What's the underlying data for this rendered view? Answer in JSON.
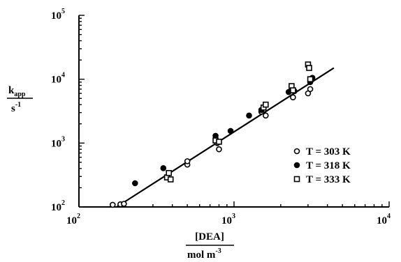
{
  "chart_data": {
    "type": "scatter",
    "xscale": "log",
    "yscale": "log",
    "xlim": [
      100,
      10000
    ],
    "ylim": [
      100,
      100000
    ],
    "grid": false,
    "legend_position": "right",
    "xlabel": {
      "numerator": "[DEA]",
      "denominator_base": "mol m",
      "denominator_exp": "-3"
    },
    "ylabel": {
      "numerator_base": "k",
      "numerator_sub": "app",
      "denominator_base": "s",
      "denominator_exp": "-1"
    },
    "x_ticks": [
      {
        "value": 100,
        "base": "10",
        "exp": "2"
      },
      {
        "value": 1000,
        "base": "10",
        "exp": "3"
      },
      {
        "value": 10000,
        "base": "10",
        "exp": "4"
      }
    ],
    "y_ticks": [
      {
        "value": 100,
        "base": "10",
        "exp": "2"
      },
      {
        "value": 1000,
        "base": "10",
        "exp": "3"
      },
      {
        "value": 10000,
        "base": "10",
        "exp": "4"
      },
      {
        "value": 100000,
        "base": "10",
        "exp": "5"
      }
    ],
    "series": [
      {
        "name": "T = 303 K",
        "marker": "open-circle",
        "points": [
          [
            165,
            108
          ],
          [
            185,
            110
          ],
          [
            195,
            112
          ],
          [
            500,
            460
          ],
          [
            500,
            520
          ],
          [
            780,
            1000
          ],
          [
            800,
            800
          ],
          [
            1500,
            3100
          ],
          [
            1600,
            2700
          ],
          [
            2400,
            5200
          ],
          [
            3000,
            6000
          ],
          [
            3100,
            7000
          ]
        ]
      },
      {
        "name": "T = 318 K",
        "marker": "filled-circle",
        "points": [
          [
            230,
            235
          ],
          [
            350,
            405
          ],
          [
            760,
            1300
          ],
          [
            950,
            1550
          ],
          [
            1250,
            2700
          ],
          [
            1500,
            3300
          ],
          [
            2250,
            6300
          ],
          [
            2450,
            6500
          ],
          [
            3100,
            9000
          ],
          [
            3200,
            10500
          ]
        ]
      },
      {
        "name": "T = 333 K",
        "marker": "open-square",
        "points": [
          [
            370,
            290
          ],
          [
            380,
            340
          ],
          [
            390,
            270
          ],
          [
            760,
            1100
          ],
          [
            800,
            1050
          ],
          [
            1550,
            3600
          ],
          [
            1600,
            4000
          ],
          [
            2350,
            7800
          ],
          [
            2400,
            6700
          ],
          [
            3000,
            17000
          ],
          [
            3050,
            15000
          ],
          [
            3100,
            10000
          ]
        ]
      }
    ],
    "fit_line": {
      "x": [
        175,
        4400
      ],
      "y": [
        100,
        15000
      ]
    }
  }
}
